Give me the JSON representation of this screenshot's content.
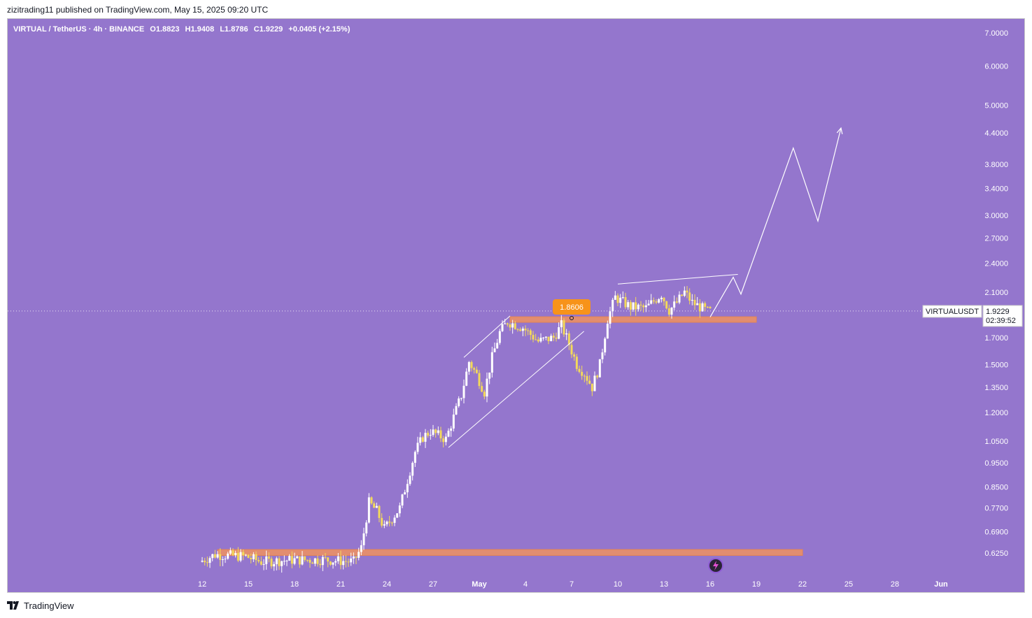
{
  "header": {
    "published_text": "zizitrading11 published on TradingView.com, May 15, 2025 09:20 UTC"
  },
  "legend": {
    "symbol": "VIRTUAL / TetherUS · 4h · BINANCE",
    "open": "O1.8823",
    "high": "H1.9408",
    "low": "L1.8786",
    "close": "C1.9229",
    "change": "+0.0405 (+2.15%)"
  },
  "price_label": {
    "ticker": "VIRTUALUSDT",
    "price": "1.9229",
    "countdown": "02:39:52"
  },
  "marker": {
    "value_label": "1.8606"
  },
  "footer": {
    "brand": "TradingView"
  },
  "colors": {
    "background": "#9476cd",
    "candle_up": "#ffffff",
    "candle_down": "#f3d95a",
    "zone_fill": "#f0925f",
    "zone_border": "#e8864f",
    "marker": "#f7931a"
  },
  "icons": {
    "lightning": "lightning-icon",
    "logo": "tradingview-logo-icon"
  },
  "chart_data": {
    "type": "candlestick",
    "scale": "log",
    "timeframe": "4h",
    "y_ticks": [
      "7.0000",
      "6.0000",
      "5.0000",
      "4.4000",
      "3.8000",
      "3.4000",
      "3.0000",
      "2.7000",
      "2.4000",
      "2.1000",
      "1.7000",
      "1.5000",
      "1.3500",
      "1.2000",
      "1.0500",
      "0.9500",
      "0.8500",
      "0.7700",
      "0.6900",
      "0.6250"
    ],
    "x_ticks": [
      "12",
      "15",
      "18",
      "21",
      "24",
      "27",
      "May",
      "4",
      "7",
      "10",
      "13",
      "16",
      "19",
      "22",
      "25",
      "28",
      "Jun"
    ],
    "x_ticks_start": "2025-04-12",
    "last_price": 1.9229,
    "marked_level": 1.8606,
    "support_zones": [
      {
        "from": "2025-04-13",
        "to": "2025-05-21",
        "low": 0.618,
        "high": 0.635
      },
      {
        "from": "2025-05-02",
        "to": "2025-05-18",
        "low": 1.825,
        "high": 1.872
      }
    ],
    "price_path": [
      {
        "date": "2025-04-12",
        "price": 0.6
      },
      {
        "date": "2025-04-13",
        "price": 0.62
      },
      {
        "date": "2025-04-15",
        "price": 0.615
      },
      {
        "date": "2025-04-16",
        "price": 0.6
      },
      {
        "date": "2025-04-18",
        "price": 0.605
      },
      {
        "date": "2025-04-20",
        "price": 0.606
      },
      {
        "date": "2025-04-22",
        "price": 0.6
      },
      {
        "date": "2025-04-22.5",
        "price": 0.64
      },
      {
        "date": "2025-04-23",
        "price": 0.79
      },
      {
        "date": "2025-04-23.5",
        "price": 0.76
      },
      {
        "date": "2025-04-24",
        "price": 0.7
      },
      {
        "date": "2025-04-25",
        "price": 0.77
      },
      {
        "date": "2025-04-26",
        "price": 1.0
      },
      {
        "date": "2025-04-26.5",
        "price": 1.07
      },
      {
        "date": "2025-04-27",
        "price": 1.1
      },
      {
        "date": "2025-04-28",
        "price": 1.06
      },
      {
        "date": "2025-04-29",
        "price": 1.3
      },
      {
        "date": "2025-04-29.5",
        "price": 1.52
      },
      {
        "date": "2025-04-30",
        "price": 1.43
      },
      {
        "date": "2025-04-30.5",
        "price": 1.32
      },
      {
        "date": "2025-05-01",
        "price": 1.55
      },
      {
        "date": "2025-05-01.5",
        "price": 1.74
      },
      {
        "date": "2025-05-02",
        "price": 1.83
      },
      {
        "date": "2025-05-03",
        "price": 1.78
      },
      {
        "date": "2025-05-04",
        "price": 1.67
      },
      {
        "date": "2025-05-05",
        "price": 1.7
      },
      {
        "date": "2025-05-05.5",
        "price": 1.8
      },
      {
        "date": "2025-05-06",
        "price": 1.65
      },
      {
        "date": "2025-05-06.5",
        "price": 1.5
      },
      {
        "date": "2025-05-07",
        "price": 1.44
      },
      {
        "date": "2025-05-07.5",
        "price": 1.35
      },
      {
        "date": "2025-05-08",
        "price": 1.5
      },
      {
        "date": "2025-05-08.5",
        "price": 1.85
      },
      {
        "date": "2025-05-09",
        "price": 2.05
      },
      {
        "date": "2025-05-10",
        "price": 1.96
      },
      {
        "date": "2025-05-11",
        "price": 1.95
      },
      {
        "date": "2025-05-12",
        "price": 2.08
      },
      {
        "date": "2025-05-12.5",
        "price": 1.93
      },
      {
        "date": "2025-05-13",
        "price": 2.0
      },
      {
        "date": "2025-05-13.5",
        "price": 2.1
      },
      {
        "date": "2025-05-14",
        "price": 2.0
      },
      {
        "date": "2025-05-15",
        "price": 1.92
      }
    ],
    "projection_path": [
      {
        "date": "2025-05-15",
        "price": 1.87
      },
      {
        "date": "2025-05-16.5",
        "price": 2.25
      },
      {
        "date": "2025-05-17",
        "price": 2.08
      },
      {
        "date": "2025-05-20.4",
        "price": 4.1
      },
      {
        "date": "2025-05-22",
        "price": 2.92
      },
      {
        "date": "2025-05-23.5",
        "price": 4.5
      }
    ],
    "trend_lines": [
      {
        "from": {
          "date": "2025-04-29",
          "price": 1.55
        },
        "to": {
          "date": "2025-05-02",
          "price": 1.88
        }
      },
      {
        "from": {
          "date": "2025-04-28",
          "price": 1.02
        },
        "to": {
          "date": "2025-05-06.8",
          "price": 1.75
        }
      },
      {
        "from": {
          "date": "2025-05-09",
          "price": 2.18
        },
        "to": {
          "date": "2025-05-16.8",
          "price": 2.28
        }
      }
    ]
  }
}
